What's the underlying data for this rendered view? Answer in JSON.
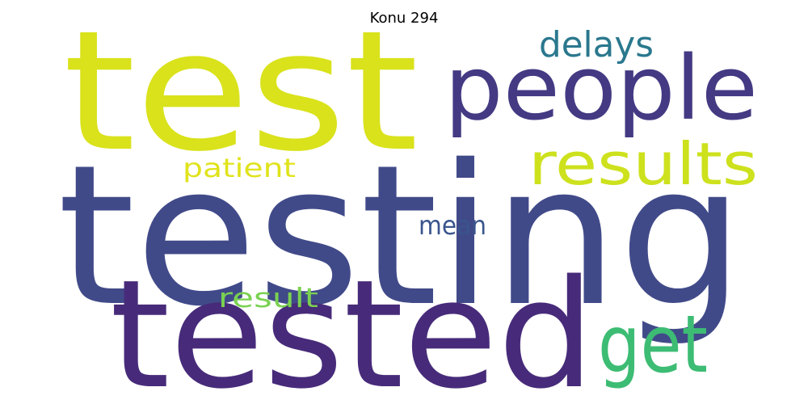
{
  "title": "Konu 294",
  "words": [
    {
      "text": "test",
      "color": "#d9e21b"
    },
    {
      "text": "testing",
      "color": "#414a89"
    },
    {
      "text": "tested",
      "color": "#472b7a"
    },
    {
      "text": "people",
      "color": "#433a83"
    },
    {
      "text": "results",
      "color": "#cde11d"
    },
    {
      "text": "get",
      "color": "#3dbc74"
    },
    {
      "text": "delays",
      "color": "#2a788e"
    },
    {
      "text": "patient",
      "color": "#e0e31b"
    },
    {
      "text": "mean",
      "color": "#3a548c"
    },
    {
      "text": "result",
      "color": "#7ad151"
    }
  ]
}
